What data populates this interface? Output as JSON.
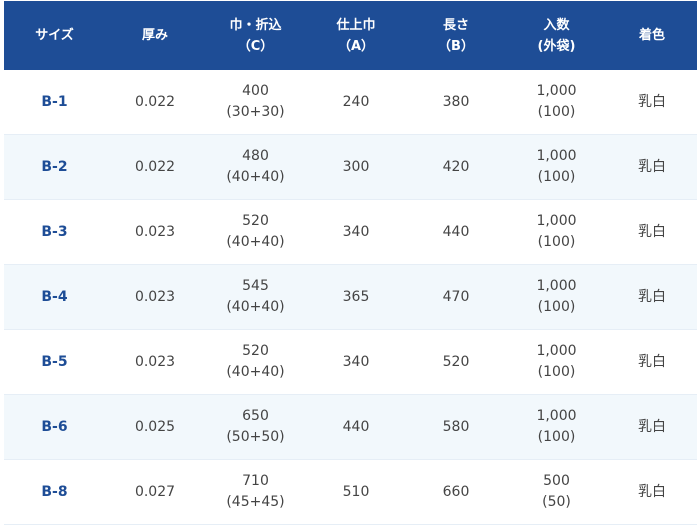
{
  "header": {
    "size": "サイズ",
    "thickness": "厚み",
    "width_fold_1": "巾・折込",
    "width_fold_2": "（C）",
    "finish_width_1": "仕上巾",
    "finish_width_2": "（A）",
    "length_1": "長さ",
    "length_2": "（B）",
    "qty_1": "入数",
    "qty_2": "(外袋)",
    "color": "着色"
  },
  "rows": [
    {
      "size": "B-1",
      "thickness": "0.022",
      "width": "400",
      "fold": "(30+30)",
      "finish": "240",
      "length": "380",
      "qty": "1,000",
      "qty_sub": "(100)",
      "color": "乳白"
    },
    {
      "size": "B-2",
      "thickness": "0.022",
      "width": "480",
      "fold": "(40+40)",
      "finish": "300",
      "length": "420",
      "qty": "1,000",
      "qty_sub": "(100)",
      "color": "乳白"
    },
    {
      "size": "B-3",
      "thickness": "0.023",
      "width": "520",
      "fold": "(40+40)",
      "finish": "340",
      "length": "440",
      "qty": "1,000",
      "qty_sub": "(100)",
      "color": "乳白"
    },
    {
      "size": "B-4",
      "thickness": "0.023",
      "width": "545",
      "fold": "(40+40)",
      "finish": "365",
      "length": "470",
      "qty": "1,000",
      "qty_sub": "(100)",
      "color": "乳白"
    },
    {
      "size": "B-5",
      "thickness": "0.023",
      "width": "520",
      "fold": "(40+40)",
      "finish": "340",
      "length": "520",
      "qty": "1,000",
      "qty_sub": "(100)",
      "color": "乳白"
    },
    {
      "size": "B-6",
      "thickness": "0.025",
      "width": "650",
      "fold": "(50+50)",
      "finish": "440",
      "length": "580",
      "qty": "1,000",
      "qty_sub": "(100)",
      "color": "乳白"
    },
    {
      "size": "B-8",
      "thickness": "0.027",
      "width": "710",
      "fold": "(45+45)",
      "finish": "510",
      "length": "660",
      "qty": "500",
      "qty_sub": "(50)",
      "color": "乳白"
    }
  ],
  "colors": {
    "header_bg": "#1e4d96",
    "alt_row_bg": "#f2f8fc",
    "code_text": "#1e4d96"
  }
}
